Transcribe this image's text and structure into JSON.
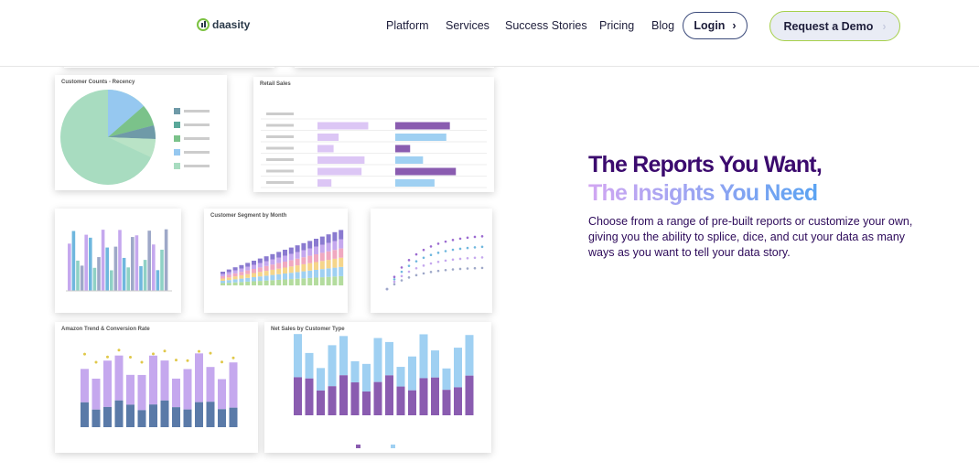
{
  "nav": {
    "logo": "daasity",
    "links": [
      "Platform",
      "Services",
      "Success Stories",
      "Pricing",
      "Blog"
    ],
    "login": "Login",
    "demo": "Request a Demo"
  },
  "hero": {
    "title_line1": "The Reports You Want,",
    "title_line2": "The Insights You Need",
    "body": "Choose from a range of pre-built reports or customize your own, giving you the ability to splice, dice, and cut your data as many ways as you want to tell your data story."
  },
  "cards": [
    "Customer Counts - Recency",
    "Retail Sales",
    "Customer Segment by Month",
    "Amazon Trend & Conversion Rate",
    "Net Sales by Customer Type"
  ]
}
